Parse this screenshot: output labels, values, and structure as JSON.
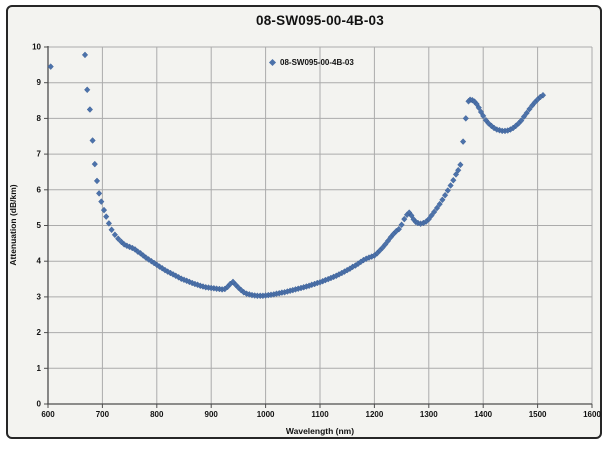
{
  "figure": {
    "title": "08-SW095-00-4B-03",
    "legend": {
      "label": "08-SW095-00-4B-03",
      "marker": "diamond-icon"
    },
    "colors": {
      "series_fill": "#4c72aa",
      "series_edge": "#3a5c92",
      "gridline": "#ababab",
      "axis": "#4d4d4d",
      "figure_background": "#f3f3f0",
      "frame_border": "#262626",
      "text": "#111111"
    }
  },
  "chart_data": {
    "type": "scatter",
    "title": "08-SW095-00-4B-03",
    "xlabel": "Wavelength (nm)",
    "ylabel": "Attenuation (dB/km)",
    "xlim": [
      600,
      1600
    ],
    "ylim": [
      0,
      10
    ],
    "x_ticks": [
      600,
      700,
      800,
      900,
      1000,
      1100,
      1200,
      1300,
      1400,
      1500,
      1600
    ],
    "y_ticks": [
      0,
      1,
      2,
      3,
      4,
      5,
      6,
      7,
      8,
      9,
      10
    ],
    "grid": true,
    "legend_position": "inside-top-center",
    "marker": "diamond",
    "series": [
      {
        "name": "08-SW095-00-4B-03",
        "color": "#4c72aa",
        "points": [
          [
            605,
            9.45
          ],
          [
            668,
            9.78
          ],
          [
            672,
            8.8
          ],
          [
            677,
            8.25
          ],
          [
            682,
            7.38
          ],
          [
            686,
            6.72
          ],
          [
            690,
            6.25
          ],
          [
            694,
            5.9
          ],
          [
            698,
            5.67
          ],
          [
            703,
            5.43
          ],
          [
            707,
            5.25
          ],
          [
            712,
            5.06
          ],
          [
            717,
            4.88
          ],
          [
            723,
            4.74
          ],
          [
            729,
            4.63
          ],
          [
            735,
            4.54
          ],
          [
            740,
            4.47
          ],
          [
            745,
            4.43
          ],
          [
            750,
            4.4
          ],
          [
            755,
            4.37
          ],
          [
            760,
            4.33
          ],
          [
            765,
            4.27
          ],
          [
            770,
            4.22
          ],
          [
            775,
            4.16
          ],
          [
            780,
            4.1
          ],
          [
            785,
            4.05
          ],
          [
            790,
            4.0
          ],
          [
            795,
            3.95
          ],
          [
            800,
            3.9
          ],
          [
            805,
            3.85
          ],
          [
            810,
            3.8
          ],
          [
            815,
            3.75
          ],
          [
            820,
            3.71
          ],
          [
            825,
            3.67
          ],
          [
            830,
            3.63
          ],
          [
            835,
            3.59
          ],
          [
            840,
            3.55
          ],
          [
            845,
            3.51
          ],
          [
            850,
            3.48
          ],
          [
            855,
            3.45
          ],
          [
            860,
            3.42
          ],
          [
            865,
            3.39
          ],
          [
            870,
            3.36
          ],
          [
            875,
            3.34
          ],
          [
            880,
            3.31
          ],
          [
            885,
            3.29
          ],
          [
            890,
            3.27
          ],
          [
            895,
            3.26
          ],
          [
            900,
            3.25
          ],
          [
            905,
            3.24
          ],
          [
            910,
            3.23
          ],
          [
            915,
            3.22
          ],
          [
            920,
            3.21
          ],
          [
            925,
            3.22
          ],
          [
            930,
            3.28
          ],
          [
            935,
            3.36
          ],
          [
            940,
            3.42
          ],
          [
            945,
            3.34
          ],
          [
            950,
            3.26
          ],
          [
            955,
            3.19
          ],
          [
            960,
            3.13
          ],
          [
            965,
            3.09
          ],
          [
            970,
            3.07
          ],
          [
            975,
            3.05
          ],
          [
            980,
            3.04
          ],
          [
            985,
            3.03
          ],
          [
            990,
            3.03
          ],
          [
            995,
            3.03
          ],
          [
            1000,
            3.04
          ],
          [
            1005,
            3.05
          ],
          [
            1010,
            3.06
          ],
          [
            1015,
            3.07
          ],
          [
            1020,
            3.09
          ],
          [
            1025,
            3.1
          ],
          [
            1030,
            3.12
          ],
          [
            1035,
            3.13
          ],
          [
            1040,
            3.15
          ],
          [
            1045,
            3.17
          ],
          [
            1050,
            3.19
          ],
          [
            1055,
            3.21
          ],
          [
            1060,
            3.23
          ],
          [
            1065,
            3.25
          ],
          [
            1070,
            3.27
          ],
          [
            1075,
            3.29
          ],
          [
            1080,
            3.31
          ],
          [
            1085,
            3.34
          ],
          [
            1090,
            3.36
          ],
          [
            1095,
            3.39
          ],
          [
            1100,
            3.41
          ],
          [
            1105,
            3.44
          ],
          [
            1110,
            3.47
          ],
          [
            1115,
            3.5
          ],
          [
            1120,
            3.53
          ],
          [
            1125,
            3.56
          ],
          [
            1130,
            3.59
          ],
          [
            1135,
            3.63
          ],
          [
            1140,
            3.67
          ],
          [
            1145,
            3.71
          ],
          [
            1150,
            3.75
          ],
          [
            1155,
            3.79
          ],
          [
            1160,
            3.84
          ],
          [
            1165,
            3.88
          ],
          [
            1170,
            3.93
          ],
          [
            1175,
            3.98
          ],
          [
            1180,
            4.03
          ],
          [
            1185,
            4.07
          ],
          [
            1190,
            4.1
          ],
          [
            1195,
            4.13
          ],
          [
            1200,
            4.16
          ],
          [
            1205,
            4.22
          ],
          [
            1210,
            4.3
          ],
          [
            1215,
            4.38
          ],
          [
            1220,
            4.47
          ],
          [
            1225,
            4.57
          ],
          [
            1230,
            4.67
          ],
          [
            1235,
            4.76
          ],
          [
            1240,
            4.84
          ],
          [
            1245,
            4.9
          ],
          [
            1250,
            5.02
          ],
          [
            1255,
            5.18
          ],
          [
            1260,
            5.3
          ],
          [
            1264,
            5.36
          ],
          [
            1268,
            5.28
          ],
          [
            1272,
            5.17
          ],
          [
            1276,
            5.1
          ],
          [
            1280,
            5.07
          ],
          [
            1285,
            5.05
          ],
          [
            1290,
            5.07
          ],
          [
            1295,
            5.11
          ],
          [
            1300,
            5.18
          ],
          [
            1305,
            5.28
          ],
          [
            1310,
            5.38
          ],
          [
            1315,
            5.49
          ],
          [
            1320,
            5.6
          ],
          [
            1325,
            5.72
          ],
          [
            1330,
            5.85
          ],
          [
            1335,
            5.98
          ],
          [
            1340,
            6.12
          ],
          [
            1345,
            6.27
          ],
          [
            1350,
            6.43
          ],
          [
            1354,
            6.55
          ],
          [
            1358,
            6.7
          ],
          [
            1363,
            7.35
          ],
          [
            1368,
            8.0
          ],
          [
            1373,
            8.48
          ],
          [
            1376,
            8.52
          ],
          [
            1380,
            8.51
          ],
          [
            1384,
            8.47
          ],
          [
            1388,
            8.4
          ],
          [
            1392,
            8.3
          ],
          [
            1396,
            8.18
          ],
          [
            1400,
            8.07
          ],
          [
            1405,
            7.95
          ],
          [
            1410,
            7.86
          ],
          [
            1415,
            7.79
          ],
          [
            1420,
            7.73
          ],
          [
            1425,
            7.69
          ],
          [
            1430,
            7.67
          ],
          [
            1435,
            7.65
          ],
          [
            1440,
            7.65
          ],
          [
            1445,
            7.66
          ],
          [
            1450,
            7.69
          ],
          [
            1455,
            7.73
          ],
          [
            1460,
            7.79
          ],
          [
            1465,
            7.86
          ],
          [
            1470,
            7.94
          ],
          [
            1475,
            8.05
          ],
          [
            1480,
            8.15
          ],
          [
            1485,
            8.26
          ],
          [
            1490,
            8.36
          ],
          [
            1495,
            8.45
          ],
          [
            1500,
            8.53
          ],
          [
            1505,
            8.6
          ],
          [
            1510,
            8.65
          ]
        ]
      }
    ]
  }
}
